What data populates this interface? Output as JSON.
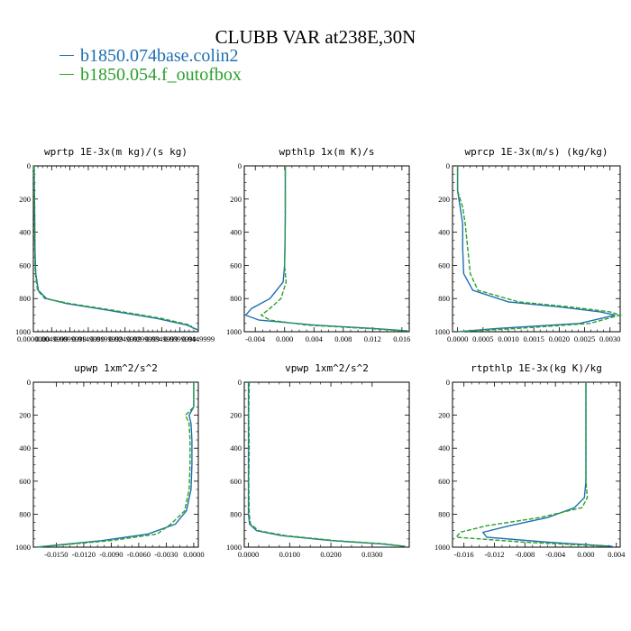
{
  "title": "CLUBB VAR at238E,30N",
  "legend": [
    {
      "label": "b1850.074base.colin2",
      "color": "#1f6fb2"
    },
    {
      "label": "b1850.054.f_outofbox",
      "color": "#2ca02c"
    }
  ],
  "chart_data": [
    {
      "type": "line",
      "title": "wprtp  1E-3x(m kg)/(s kg)",
      "xlim": [
        0,
        1
      ],
      "ylim": [
        1000,
        0
      ],
      "xticks": [
        0,
        0.111,
        0.222,
        0.333,
        0.444,
        0.556,
        0.667,
        0.778,
        0.889,
        1
      ],
      "xtick_labels": [
        "0.0000000",
        "0.0049999",
        "0.0099999",
        "0.0149999",
        "0.0199999",
        "0.0249999",
        "0.0299999",
        "0.0349999",
        "0.0399999",
        "0.0449999"
      ],
      "yticks": [
        0,
        200,
        400,
        600,
        800,
        1000
      ],
      "series": [
        {
          "name": "b1850.074base.colin2",
          "x": [
            0.005,
            0.008,
            0.01,
            0.015,
            0.03,
            0.08,
            0.2,
            0.45,
            0.75,
            0.93,
            1.0
          ],
          "y": [
            0,
            300,
            500,
            650,
            750,
            800,
            830,
            870,
            920,
            960,
            990
          ]
        },
        {
          "name": "b1850.054.f_outofbox",
          "x": [
            0.003,
            0.006,
            0.008,
            0.012,
            0.025,
            0.07,
            0.22,
            0.48,
            0.78,
            0.95,
            0.98
          ],
          "y": [
            0,
            300,
            500,
            650,
            750,
            800,
            830,
            870,
            920,
            960,
            990
          ]
        }
      ]
    },
    {
      "type": "line",
      "title": "wpthlp  1x(m K)/s",
      "xlim": [
        -0.0055,
        0.017
      ],
      "ylim": [
        1000,
        0
      ],
      "xticks": [
        -0.004,
        0,
        0.004,
        0.008,
        0.012,
        0.016
      ],
      "xtick_labels": [
        "-0.004",
        "0.000",
        "0.004",
        "0.008",
        "0.012",
        "0.016"
      ],
      "yticks": [
        0,
        200,
        400,
        600,
        800,
        1000
      ],
      "series": [
        {
          "name": "b1850.074base.colin2",
          "x": [
            0.0001,
            0.0001,
            5e-05,
            0,
            -0.0002,
            -0.002,
            -0.0045,
            -0.0053,
            -0.0035,
            0.004,
            0.012,
            0.0168
          ],
          "y": [
            0,
            300,
            500,
            600,
            700,
            800,
            860,
            900,
            930,
            960,
            980,
            995
          ]
        },
        {
          "name": "b1850.054.f_outofbox",
          "x": [
            0.0001,
            0.0001,
            5e-05,
            0,
            0.0002,
            -0.0005,
            -0.002,
            -0.0032,
            -0.002,
            0.003,
            0.011,
            0.0165
          ],
          "y": [
            0,
            300,
            500,
            600,
            700,
            800,
            860,
            900,
            930,
            960,
            980,
            995
          ]
        }
      ]
    },
    {
      "type": "line",
      "title": "wprcp  1E-3x(m/s) (kg/kg)",
      "xlim": [
        -0.0001,
        0.0032
      ],
      "ylim": [
        1000,
        0
      ],
      "xticks": [
        0,
        0.0005,
        0.001,
        0.0015,
        0.002,
        0.0025,
        0.003
      ],
      "xtick_labels": [
        "0.0000",
        "0.0005",
        "0.0010",
        "0.0015",
        "0.0020",
        "0.0025",
        "0.0030"
      ],
      "yticks": [
        0,
        200,
        400,
        600,
        800,
        1000
      ],
      "series": [
        {
          "name": "b1850.074base.colin2",
          "x": [
            0,
            0,
            5e-05,
            0.0001,
            0.0001,
            0.00012,
            0.0003,
            0.001,
            0.002,
            0.0028,
            0.0031,
            0.0024,
            0.0008,
            0
          ],
          "y": [
            0,
            150,
            250,
            350,
            500,
            650,
            750,
            820,
            850,
            880,
            900,
            950,
            980,
            1000
          ]
        },
        {
          "name": "b1850.054.f_outofbox",
          "x": [
            0,
            0,
            0.0001,
            0.00015,
            0.0002,
            0.00025,
            0.0004,
            0.0012,
            0.0022,
            0.003,
            0.0032,
            0.0026,
            0.0012,
            0
          ],
          "y": [
            0,
            150,
            250,
            350,
            500,
            650,
            750,
            820,
            850,
            880,
            900,
            950,
            980,
            1000
          ]
        }
      ]
    },
    {
      "type": "line",
      "title": "upwp  1xm^2/s^2",
      "xlim": [
        -0.0175,
        0.0005
      ],
      "ylim": [
        1000,
        0
      ],
      "xticks": [
        -0.015,
        -0.012,
        -0.009,
        -0.006,
        -0.003,
        0
      ],
      "xtick_labels": [
        "-0.0150",
        "-0.0120",
        "-0.0090",
        "-0.0060",
        "-0.0030",
        "0.0000"
      ],
      "yticks": [
        0,
        200,
        400,
        600,
        800,
        1000
      ],
      "series": [
        {
          "name": "b1850.074base.colin2",
          "x": [
            0,
            0,
            -0.0005,
            -0.0003,
            -0.0002,
            -0.0002,
            -0.0003,
            -0.0008,
            -0.002,
            -0.005,
            -0.01,
            -0.0172
          ],
          "y": [
            0,
            150,
            200,
            250,
            350,
            500,
            650,
            780,
            860,
            920,
            960,
            1000
          ]
        },
        {
          "name": "b1850.054.f_outofbox",
          "x": [
            0,
            0,
            -0.0009,
            -0.0005,
            -0.0004,
            -0.0004,
            -0.0005,
            -0.001,
            -0.0025,
            -0.004,
            -0.009,
            -0.0172
          ],
          "y": [
            0,
            150,
            200,
            250,
            350,
            500,
            650,
            780,
            860,
            920,
            960,
            1000
          ]
        }
      ]
    },
    {
      "type": "line",
      "title": "vpwp  1xm^2/s^2",
      "xlim": [
        -0.001,
        0.039
      ],
      "ylim": [
        1000,
        0
      ],
      "xticks": [
        0,
        0.01,
        0.02,
        0.03
      ],
      "xtick_labels": [
        "0.0000",
        "0.0100",
        "0.0200",
        "0.0300"
      ],
      "yticks": [
        0,
        200,
        400,
        600,
        800,
        1000
      ],
      "series": [
        {
          "name": "b1850.074base.colin2",
          "x": [
            0,
            0,
            0,
            0,
            0,
            0.0003,
            0.002,
            0.008,
            0.02,
            0.032,
            0.038
          ],
          "y": [
            0,
            200,
            400,
            600,
            800,
            860,
            900,
            930,
            960,
            980,
            995
          ]
        },
        {
          "name": "b1850.054.f_outofbox",
          "x": [
            0.0002,
            0.0001,
            0.0002,
            0.0001,
            0.0002,
            0.0005,
            0.0025,
            0.009,
            0.021,
            0.033,
            0.038
          ],
          "y": [
            0,
            200,
            400,
            600,
            800,
            860,
            900,
            930,
            960,
            980,
            995
          ]
        }
      ]
    },
    {
      "type": "line",
      "title": "rtpthlp  1E-3x(kg K)/kg",
      "xlim": [
        -0.0175,
        0.0045
      ],
      "ylim": [
        1000,
        0
      ],
      "xticks": [
        -0.016,
        -0.012,
        -0.008,
        -0.004,
        0,
        0.004
      ],
      "xtick_labels": [
        "-0.016",
        "-0.012",
        "-0.008",
        "-0.004",
        "0.000",
        "0.004"
      ],
      "yticks": [
        0,
        200,
        400,
        600,
        800,
        1000
      ],
      "series": [
        {
          "name": "b1850.074base.colin2",
          "x": [
            0,
            0,
            0,
            0,
            -0.0002,
            -0.0015,
            -0.005,
            -0.01,
            -0.0135,
            -0.013,
            -0.005,
            0.0035
          ],
          "y": [
            0,
            200,
            400,
            600,
            700,
            760,
            820,
            870,
            910,
            940,
            970,
            995
          ]
        },
        {
          "name": "b1850.054.f_outofbox",
          "x": [
            0,
            0,
            0,
            0,
            0.0002,
            -0.0005,
            -0.006,
            -0.013,
            -0.0165,
            -0.017,
            -0.008,
            0.003
          ],
          "y": [
            0,
            200,
            400,
            600,
            700,
            760,
            820,
            870,
            910,
            940,
            970,
            995
          ]
        }
      ]
    }
  ]
}
